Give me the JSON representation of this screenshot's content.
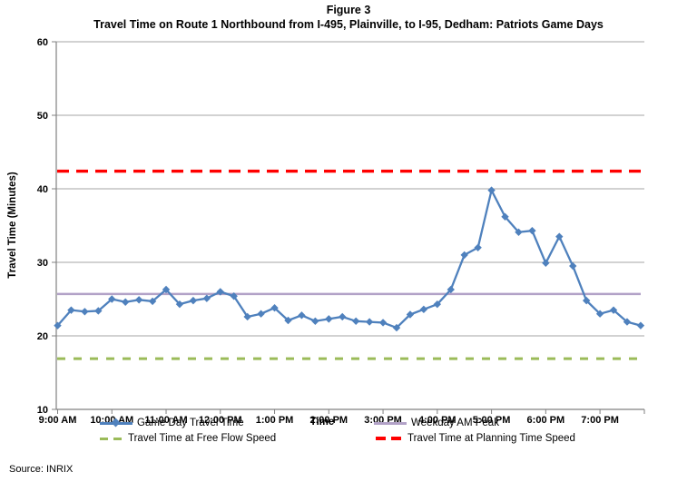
{
  "title": {
    "line1": "Figure 3",
    "line2": "Travel Time on Route 1 Northbound from I-495, Plainville, to I-95, Dedham: Patriots Game Days"
  },
  "source": "Source: INRIX",
  "chart_data": {
    "type": "line",
    "title": "Travel Time on Route 1 Northbound from I-495, Plainville, to I-95, Dedham: Patriots Game Days",
    "xlabel": "Time",
    "ylabel": "Travel Time (Minutes)",
    "ylim": [
      10,
      60
    ],
    "ytick_step": 10,
    "grid": "horizontal",
    "legend_position": "bottom",
    "style": {
      "grid_color": "#A6A6A6",
      "axis_color": "#808080",
      "background": "#FFFFFF"
    },
    "x": [
      "9:00 AM",
      "9:15 AM",
      "9:30 AM",
      "9:45 AM",
      "10:00 AM",
      "10:15 AM",
      "10:30 AM",
      "10:45 AM",
      "11:00 AM",
      "11:15 AM",
      "11:30 AM",
      "11:45 AM",
      "12:00 PM",
      "12:15 PM",
      "12:30 PM",
      "12:45 PM",
      "1:00 PM",
      "1:15 PM",
      "1:30 PM",
      "1:45 PM",
      "2:00 PM",
      "2:15 PM",
      "2:30 PM",
      "2:45 PM",
      "3:00 PM",
      "3:15 PM",
      "3:30 PM",
      "3:45 PM",
      "4:00 PM",
      "4:15 PM",
      "4:30 PM",
      "4:45 PM",
      "5:00 PM",
      "5:15 PM",
      "5:30 PM",
      "5:45 PM",
      "6:00 PM",
      "6:15 PM",
      "6:30 PM",
      "6:45 PM",
      "7:00 PM",
      "7:15 PM",
      "7:30 PM",
      "7:45 PM"
    ],
    "x_tick_labels": [
      "9:00 AM",
      "10:00 AM",
      "11:00 AM",
      "12:00 PM",
      "1:00 PM",
      "2:00 PM",
      "3:00 PM",
      "4:00 PM",
      "5:00 PM",
      "6:00 PM",
      "7:00 PM"
    ],
    "series": [
      {
        "id": "game-day",
        "name": "Game Day Travel Time",
        "type": "line",
        "marker": "diamond",
        "color": "#4F81BD",
        "values": [
          21.4,
          23.5,
          23.3,
          23.4,
          25.0,
          24.6,
          24.9,
          24.7,
          26.3,
          24.3,
          24.8,
          25.1,
          26.0,
          25.4,
          22.6,
          23.0,
          23.8,
          22.1,
          22.8,
          22.0,
          22.3,
          22.6,
          22.0,
          21.9,
          21.8,
          21.1,
          22.9,
          23.6,
          24.3,
          26.3,
          31.0,
          32.0,
          39.8,
          36.2,
          34.1,
          34.3,
          29.9,
          33.5,
          29.5,
          24.8,
          23.0,
          23.5,
          21.9,
          21.4
        ]
      },
      {
        "id": "weekday-am-peak",
        "name": "Weekday AM Peak",
        "type": "hline",
        "value": 25.7,
        "color": "#B2A2C7",
        "width": 2.5,
        "dash": ""
      },
      {
        "id": "free-flow",
        "name": "Travel Time at Free Flow Speed",
        "type": "hline",
        "value": 16.9,
        "color": "#9BBB59",
        "width": 3,
        "dash": "9 9"
      },
      {
        "id": "planning-time",
        "name": "Travel Time at Planning Time Speed",
        "type": "hline",
        "value": 42.4,
        "color": "#FF0000",
        "width": 3.4,
        "dash": "13 8"
      }
    ]
  }
}
